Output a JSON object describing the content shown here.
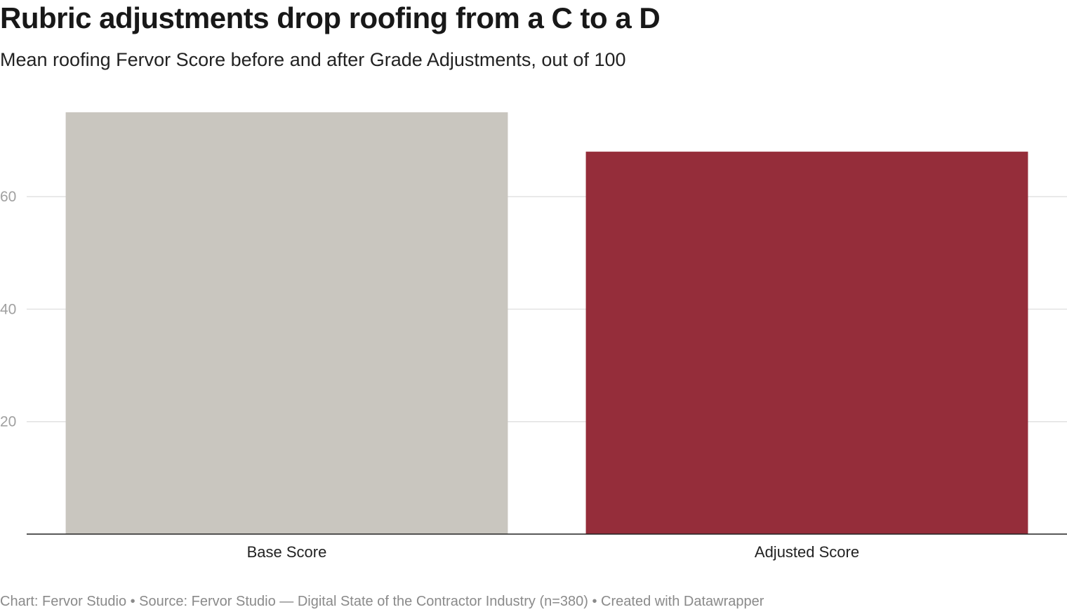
{
  "chart_data": {
    "type": "bar",
    "title": "Rubric adjustments drop roofing from a C to a D",
    "subtitle": "Mean roofing Fervor Score before and after Grade Adjustments, out of 100",
    "categories": [
      "Base Score",
      "Adjusted Score"
    ],
    "values": [
      75,
      68
    ],
    "colors": [
      "#c9c6bf",
      "#952d3a"
    ],
    "ylim": [
      0,
      75
    ],
    "yticks": [
      20,
      40,
      60
    ],
    "ytick_labels": [
      "20",
      "40",
      "60"
    ],
    "grid": true,
    "xlabel": "",
    "ylabel": ""
  },
  "footer": {
    "text": "Chart: Fervor Studio • Source: Fervor Studio — Digital State of the Contractor Industry (n=380) • Created with Datawrapper"
  }
}
